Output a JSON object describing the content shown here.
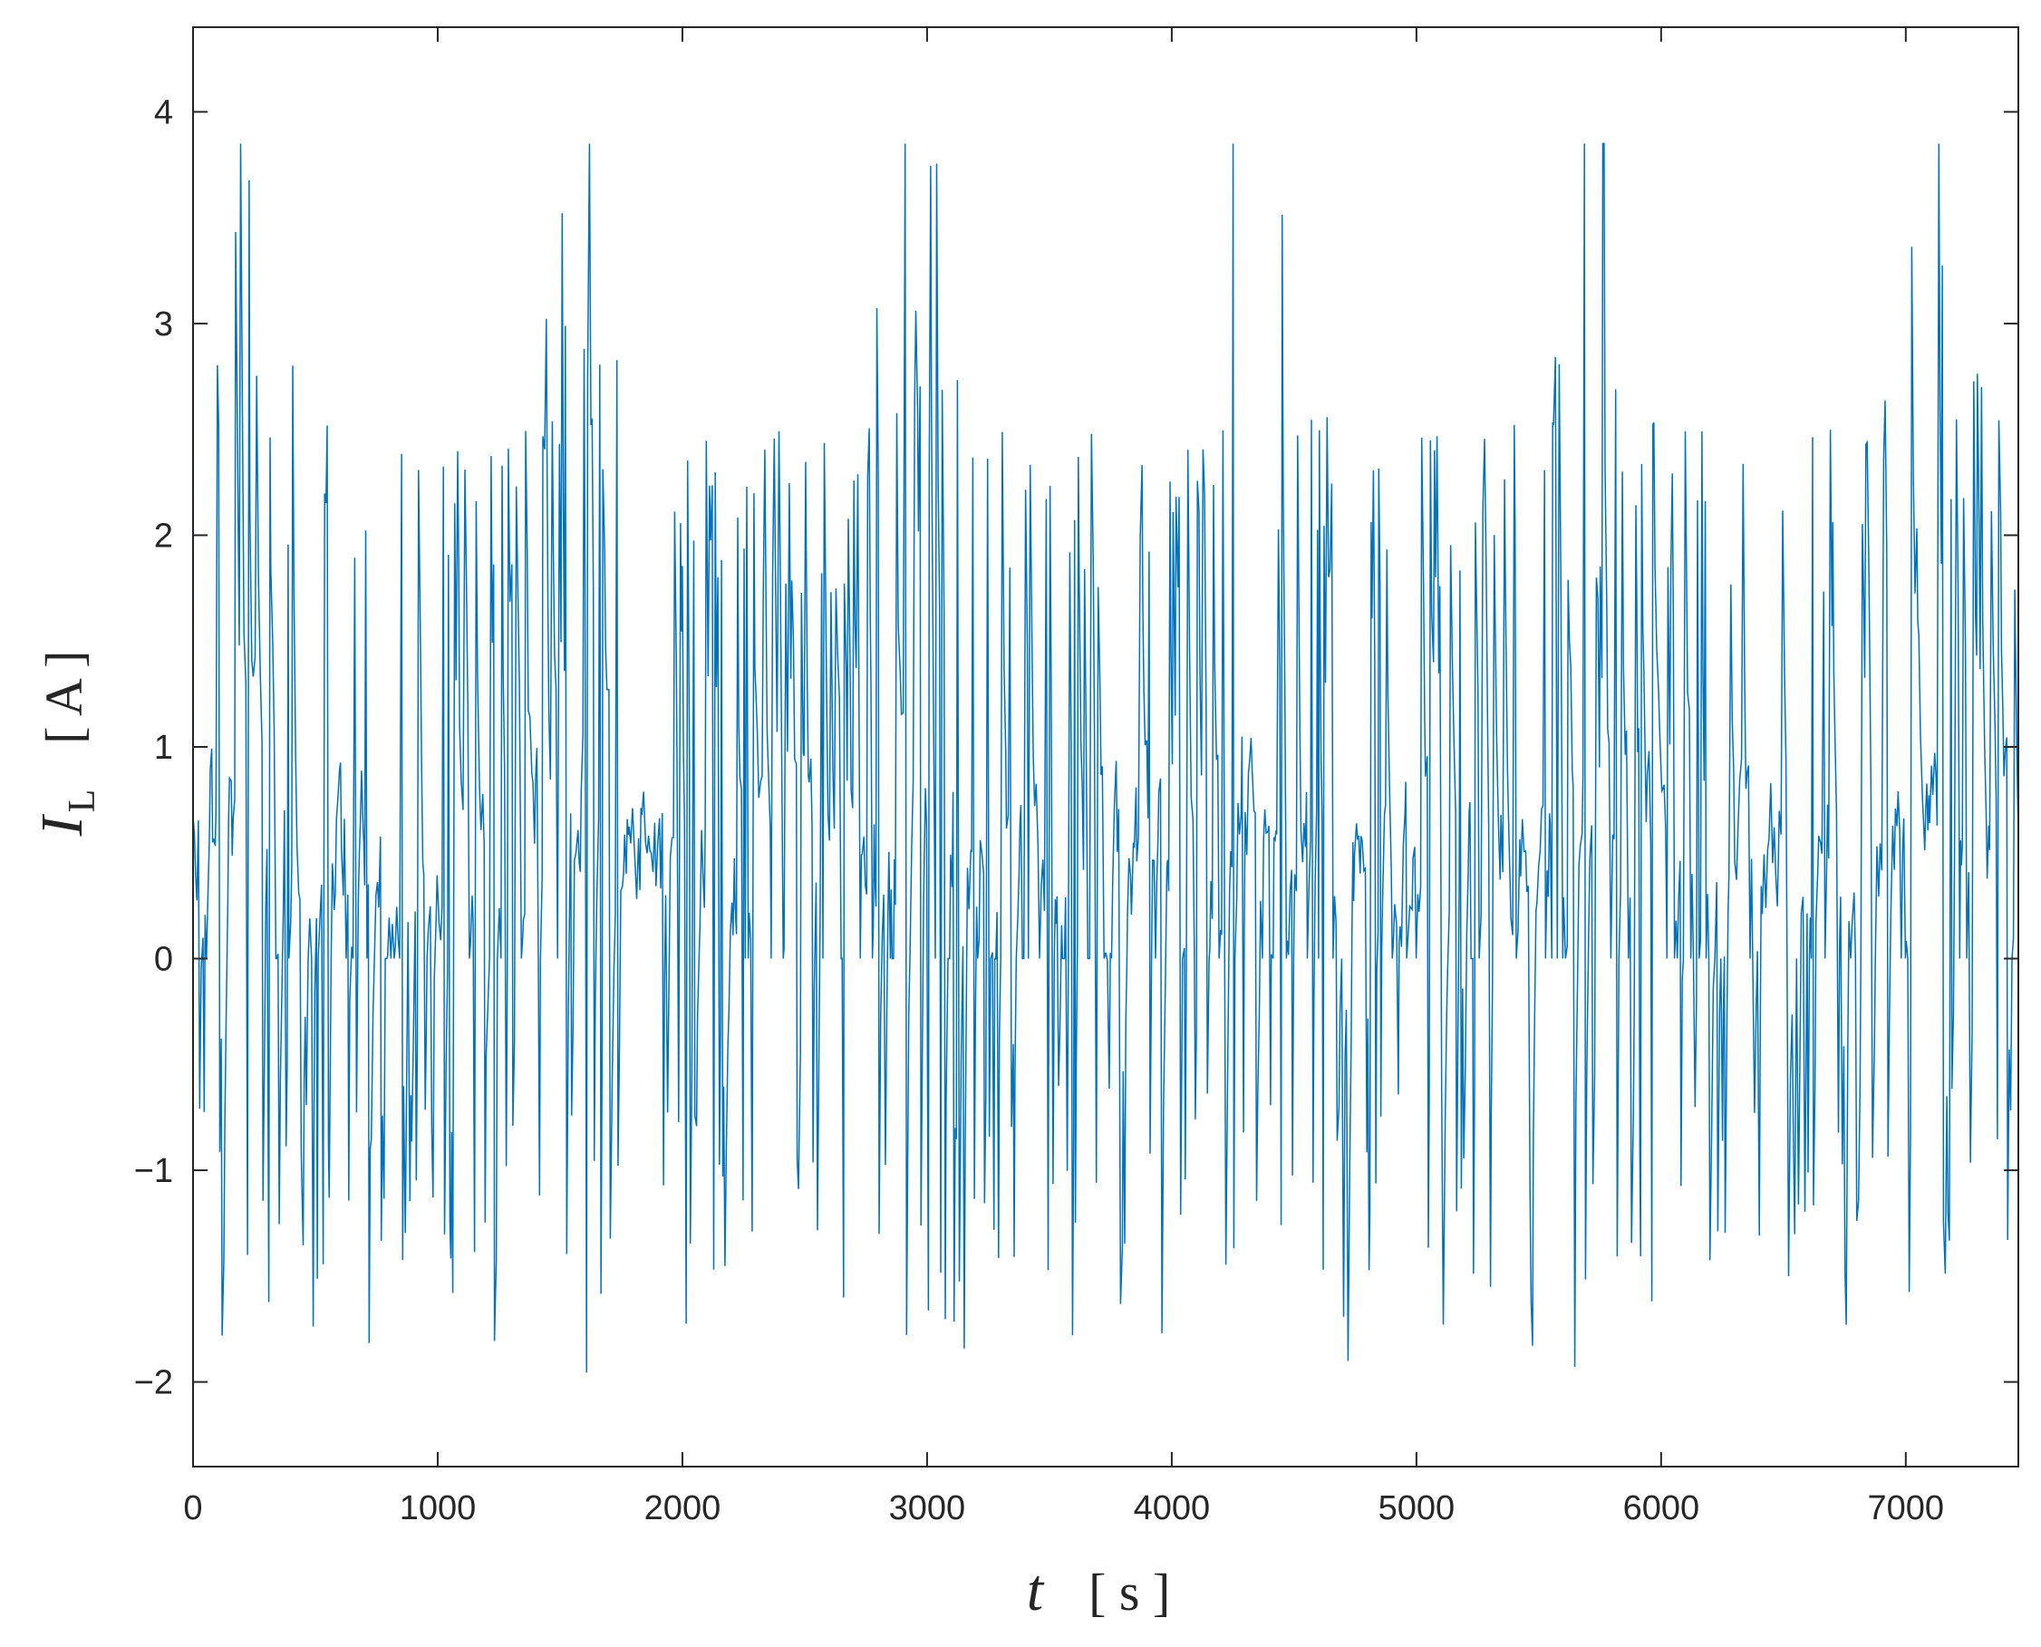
{
  "chart_data": {
    "type": "line",
    "title": "",
    "xlabel": {
      "symbol": "t",
      "unit": "[ s ]"
    },
    "ylabel": {
      "symbol": "I",
      "subscript": "L",
      "unit": "[ A ]"
    },
    "xlim": [
      0,
      7460
    ],
    "ylim": [
      -2.4,
      4.4
    ],
    "xticks": [
      0,
      1000,
      2000,
      3000,
      4000,
      5000,
      6000,
      7000
    ],
    "yticks": [
      -2,
      -1,
      0,
      1,
      2,
      3,
      4
    ],
    "xtick_labels": [
      "0",
      "1000",
      "2000",
      "3000",
      "4000",
      "5000",
      "6000",
      "7000"
    ],
    "ytick_labels": [
      "−2",
      "−1",
      "0",
      "1",
      "2",
      "3",
      "4"
    ],
    "grid": false,
    "box": true,
    "series": [
      {
        "color": "#0072BD",
        "line_width": 1.5,
        "characteristics": {
          "peak_max": 3.85,
          "trough_min": -2.02,
          "burst_period_s": 1370,
          "burst_centers_s": [
            220,
            1590,
            2960,
            4330,
            5700,
            7070
          ],
          "baseline": 0.0
        }
      }
    ]
  }
}
